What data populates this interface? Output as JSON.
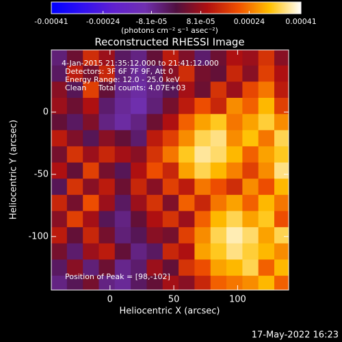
{
  "chart_data": {
    "type": "heatmap",
    "title": "Reconstructed RHESSI Image",
    "xlabel": "Heliocentric X (arcsec)",
    "ylabel": "Heliocentric Y (arcsec)",
    "annotations": [
      "4-Jan-2015 21:35:12.000 to 21:41:12.000",
      "Detectors: 3F 6F 7F 9F, Att 0",
      "Energy Range: 12.0 - 25.0 keV",
      "Clean     Total counts: 4.07E+03"
    ],
    "peak_label": "Position of Peak = [98,-102]",
    "timestamp": "17-May-2022 16:23",
    "colorbar": {
      "label": "(photons cm⁻² s⁻¹ asec⁻²)",
      "lim": [
        -0.00041,
        0.00041
      ],
      "ticks": [
        -0.00041,
        -0.00024,
        {
          "value": -8.1e-05,
          "label": "-8.1e-05"
        },
        {
          "value": 8.1e-05,
          "label": "8.1e-05"
        },
        0.00024,
        0.00041
      ],
      "colormap": [
        "#0000ff",
        "#3010f0",
        "#6020d0",
        "#7030b0",
        "#501040",
        "#b01010",
        "#f05000",
        "#ffc000",
        "#ffffff"
      ]
    },
    "xlim": [
      -46,
      140
    ],
    "ylim": [
      -143,
      50
    ],
    "xticks": [
      0,
      50,
      100
    ],
    "yticks": [
      0,
      -50,
      -100
    ],
    "x": [
      -40,
      -27.5,
      -15,
      -2.5,
      10,
      22.5,
      35,
      47.5,
      60,
      72.5,
      85,
      97.5,
      110,
      122.5,
      135
    ],
    "y": [
      44,
      31,
      18,
      5,
      -8,
      -21,
      -34,
      -47,
      -60,
      -73,
      -86,
      -99,
      -112,
      -125,
      -138
    ],
    "values": [
      [
        -5e-05,
        3e-05,
        0.00015,
        8e-05,
        -3e-05,
        -6e-05,
        2e-05,
        0.00012,
        5e-05,
        -4e-05,
        3e-05,
        0.0001,
        8e-05,
        0.00016,
        6e-05
      ],
      [
        -3e-05,
        0.00012,
        4e-05,
        0.00014,
        -5e-05,
        -8e-05,
        -4e-05,
        6e-05,
        0.00015,
        4e-05,
        2e-05,
        0.00014,
        6e-05,
        0.00018,
        0.0001
      ],
      [
        6e-05,
        -2e-05,
        0.00018,
        2e-05,
        -7e-05,
        -9e-05,
        -6e-05,
        -2e-05,
        9e-05,
        3e-05,
        0.00016,
        8e-05,
        0.00019,
        0.00024,
        0.00012
      ],
      [
        8e-05,
        3e-05,
        0.0001,
        -4e-05,
        -8e-05,
        -0.0001,
        -5e-05,
        4e-05,
        0.00012,
        0.0002,
        0.00014,
        0.00026,
        0.00022,
        0.0003,
        0.00018
      ],
      [
        2e-05,
        -3e-05,
        5e-05,
        -6e-05,
        -9e-05,
        -6e-05,
        3e-05,
        0.0001,
        0.00022,
        0.00028,
        0.00032,
        0.00024,
        0.00028,
        0.00033,
        0.00026
      ],
      [
        0.00012,
        5e-05,
        -2e-05,
        6e-05,
        2e-05,
        -4e-05,
        0.00012,
        0.00018,
        0.00026,
        0.00034,
        0.00036,
        0.00026,
        0.00031,
        0.00024,
        0.00034
      ],
      [
        4e-05,
        0.00016,
        8e-05,
        0.00014,
        9e-05,
        6e-05,
        0.00016,
        0.00024,
        0.00032,
        0.00037,
        0.00035,
        0.0003,
        0.00022,
        0.00028,
        0.00032
      ],
      [
        0.0001,
        2e-05,
        0.00018,
        4e-05,
        -2e-05,
        0.0001,
        0.0002,
        0.00014,
        0.00028,
        0.00034,
        0.0003,
        0.00025,
        0.00018,
        0.00026,
        0.00036
      ],
      [
        -2e-05,
        0.00016,
        6e-05,
        0.00012,
        3e-05,
        0.00014,
        6e-05,
        0.00018,
        0.00012,
        0.00024,
        0.0002,
        0.00015,
        0.00026,
        0.0002,
        0.0003
      ],
      [
        0.00014,
        4e-05,
        0.0002,
        8e-05,
        -3e-05,
        8e-05,
        0.00016,
        5e-05,
        0.00022,
        0.00014,
        0.00024,
        0.00028,
        0.00022,
        0.0003,
        0.00024
      ],
      [
        6e-05,
        0.00018,
        9e-05,
        -2e-05,
        -6e-05,
        2e-05,
        0.0001,
        0.00016,
        8e-05,
        0.00022,
        0.0003,
        0.00034,
        0.00028,
        0.00032,
        0.0002
      ],
      [
        0.00012,
        2e-05,
        0.00014,
        4e-05,
        -5e-05,
        -2e-05,
        6e-05,
        4e-05,
        0.00018,
        0.00026,
        0.00034,
        0.00038,
        0.00035,
        0.00028,
        0.00034
      ],
      [
        4e-05,
        -4e-05,
        8e-05,
        0.00012,
        2e-05,
        -6e-05,
        -3e-05,
        0.00014,
        0.0001,
        0.00028,
        0.00032,
        0.00036,
        0.00033,
        0.0003,
        0.00026
      ],
      [
        -3e-05,
        6e-05,
        -5e-05,
        3e-05,
        -7e-05,
        -4e-05,
        8e-05,
        2e-05,
        0.00016,
        0.0002,
        0.00028,
        0.0003,
        0.00034,
        0.00022,
        0.0003
      ],
      [
        -6e-05,
        -2e-05,
        4e-05,
        -6e-05,
        -8e-05,
        -3e-05,
        2e-05,
        9e-05,
        6e-05,
        0.00014,
        0.00022,
        0.00024,
        0.00026,
        0.0003,
        0.00022
      ]
    ]
  }
}
